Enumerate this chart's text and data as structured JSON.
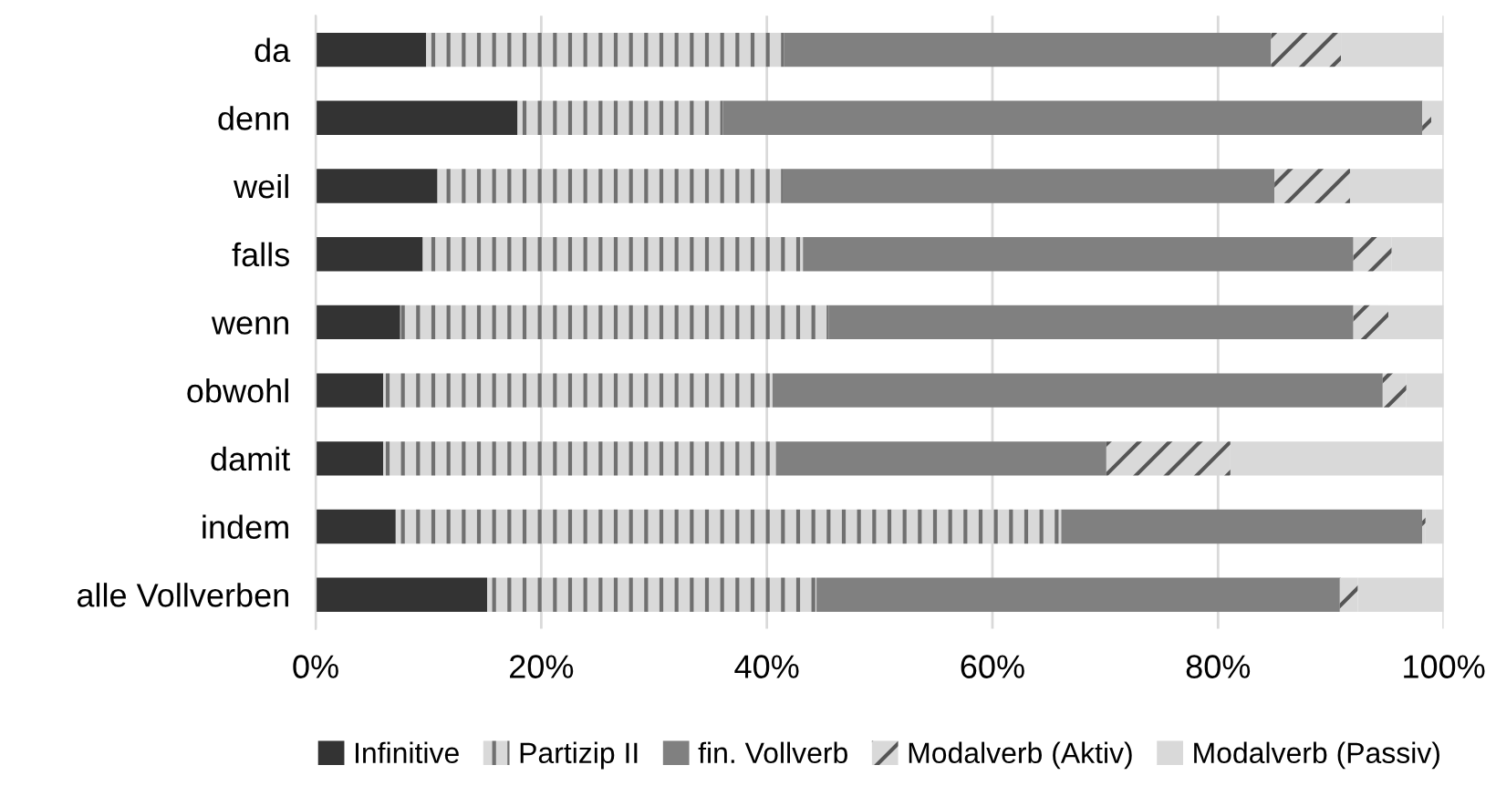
{
  "chart_data": {
    "type": "bar",
    "orientation": "horizontal",
    "stacked": true,
    "categories": [
      "da",
      "denn",
      "weil",
      "falls",
      "wenn",
      "obwohl",
      "damit",
      "indem",
      "alle Vollverben"
    ],
    "series": [
      {
        "name": "Infinitive",
        "color": "#333333",
        "values": [
          9.8,
          17.9,
          10.8,
          9.5,
          7.5,
          6.0,
          6.0,
          7.1,
          15.2
        ]
      },
      {
        "name": "Partizip II",
        "color": "#d9d9d9",
        "values": [
          31.7,
          18.2,
          30.6,
          33.7,
          38.0,
          34.5,
          34.8,
          59.0,
          29.2
        ]
      },
      {
        "name": "fin. Vollverb",
        "color": "#808080",
        "values": [
          43.2,
          62.0,
          43.6,
          48.8,
          46.5,
          54.1,
          29.3,
          32.0,
          46.4
        ]
      },
      {
        "name": "Modalverb (Aktiv)",
        "color": "#d9d9d9",
        "values": [
          6.2,
          0.8,
          6.7,
          3.4,
          3.1,
          2.1,
          11.0,
          0.3,
          1.6
        ]
      },
      {
        "name": "Modalverb (Passiv)",
        "color": "#d9d9d9",
        "values": [
          9.1,
          1.1,
          8.3,
          4.6,
          4.9,
          3.3,
          18.9,
          1.6,
          7.6
        ]
      }
    ],
    "xlim": [
      0,
      100
    ],
    "xticks": [
      {
        "value": 0,
        "label": "0%"
      },
      {
        "value": 20,
        "label": "20%"
      },
      {
        "value": 40,
        "label": "40%"
      },
      {
        "value": 60,
        "label": "60%"
      },
      {
        "value": 80,
        "label": "80%"
      },
      {
        "value": 100,
        "label": "100%"
      }
    ],
    "grid": "x",
    "legend": "bottom"
  }
}
